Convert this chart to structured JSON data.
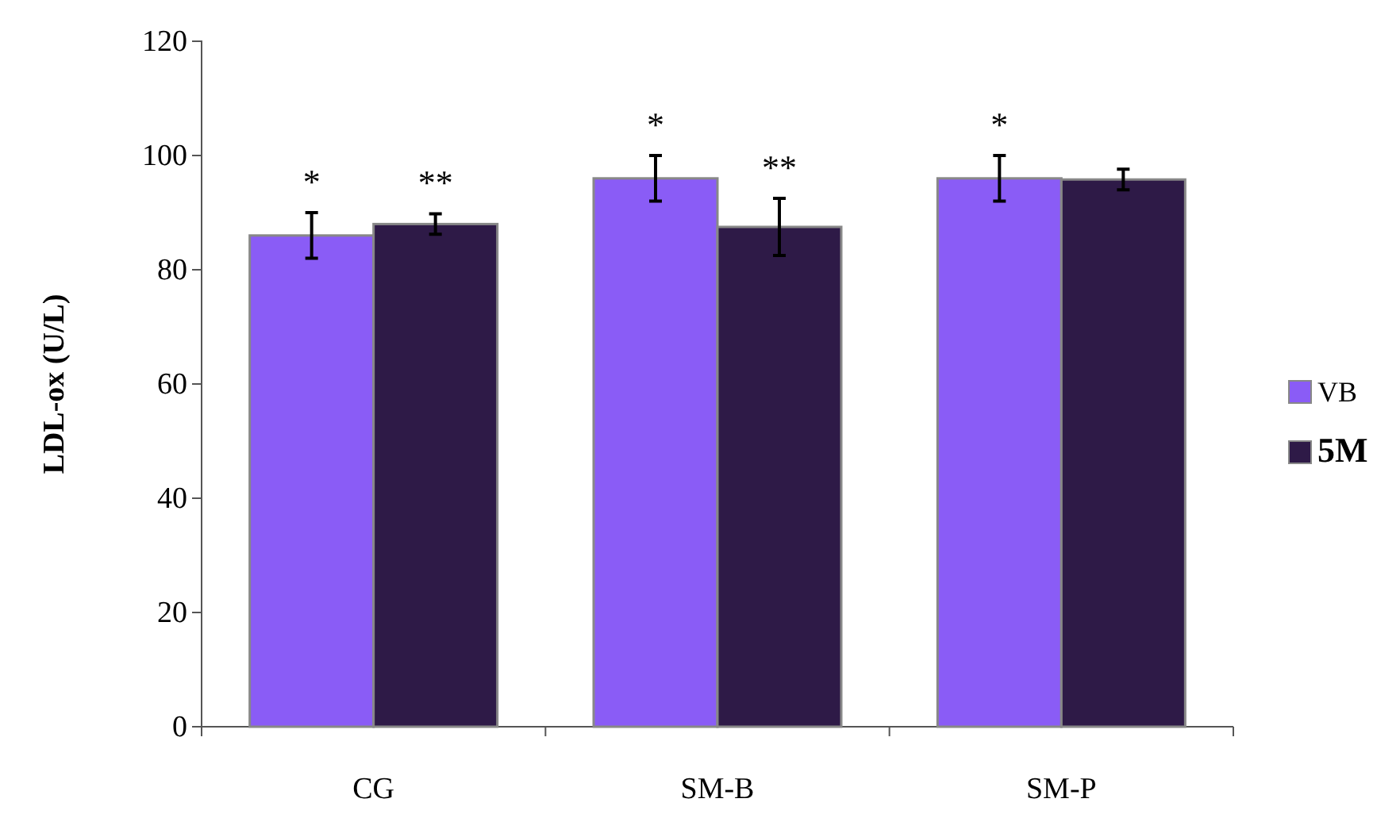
{
  "chart_data": {
    "type": "bar",
    "ylabel": "LDL-ox (U/L)",
    "categories": [
      "CG",
      "SM-B",
      "SM-P"
    ],
    "series": [
      {
        "name": "VB",
        "color": "#8a5cf6",
        "values": [
          86,
          96,
          96
        ],
        "errors": [
          4,
          4,
          4
        ],
        "value_labels": [
          "*",
          "*",
          "*"
        ]
      },
      {
        "name": "5M",
        "color": "#2e1a47",
        "values": [
          88,
          87.5,
          95.8
        ],
        "errors": [
          1.8,
          5,
          1.8
        ],
        "value_labels": [
          "**",
          "**",
          null
        ]
      }
    ],
    "ylim": [
      0,
      120
    ],
    "yticks": [
      0,
      20,
      40,
      60,
      80,
      100,
      120
    ],
    "grid": false,
    "legend": "right"
  }
}
